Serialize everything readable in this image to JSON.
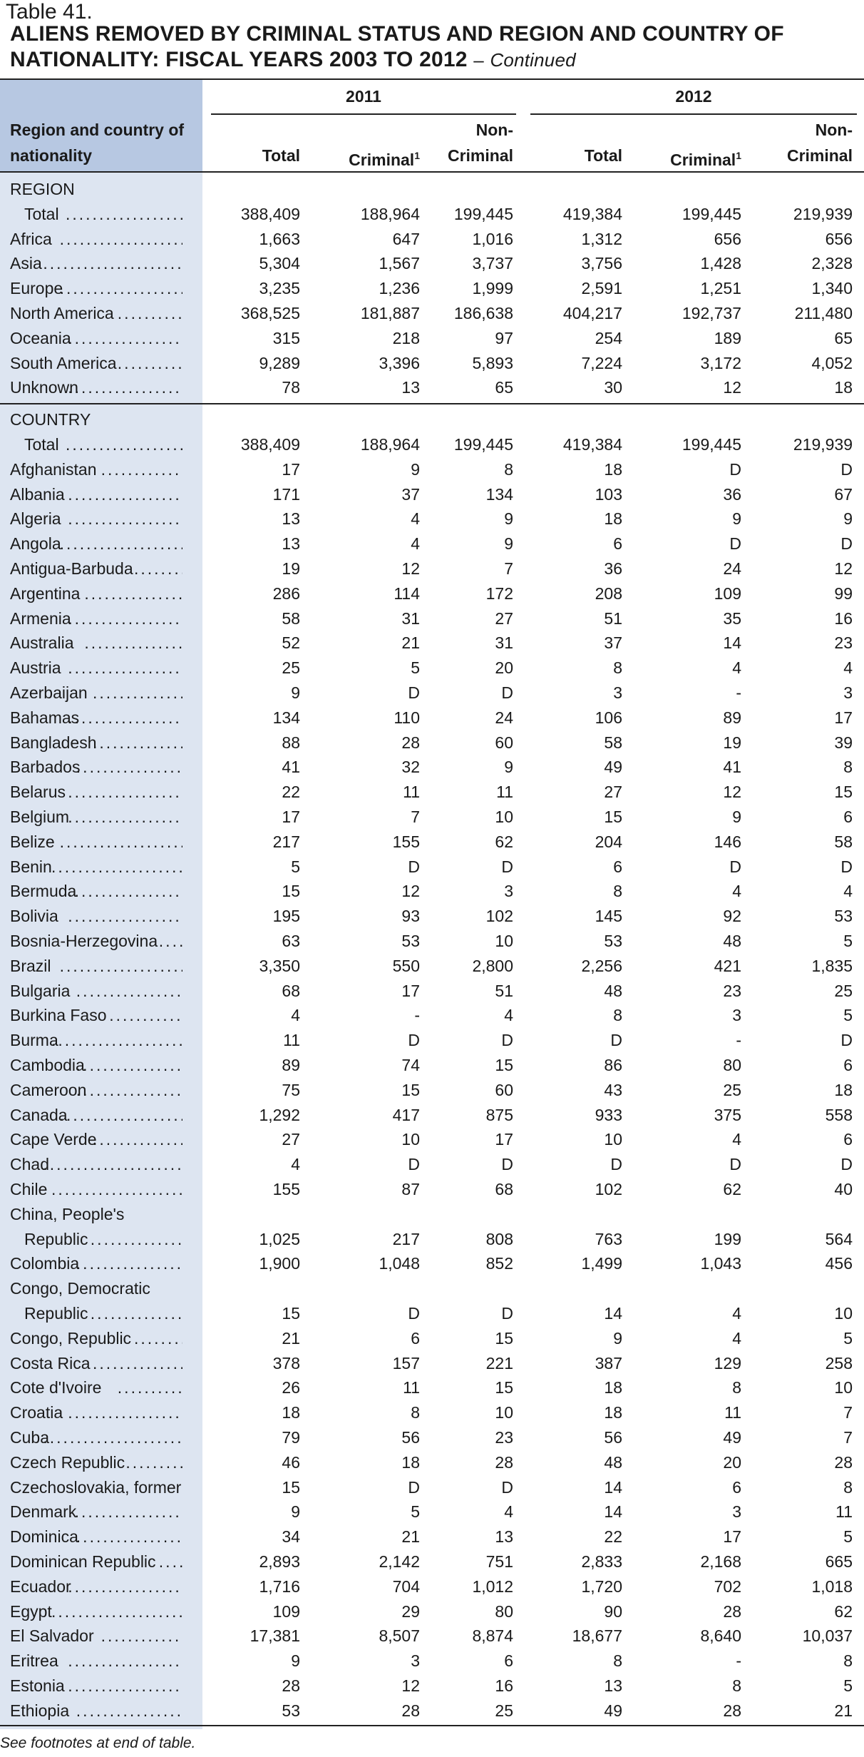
{
  "table_number": "Table 41.",
  "title": "ALIENS REMOVED BY CRIMINAL STATUS AND REGION AND COUNTRY OF NATIONALITY: FISCAL YEARS 2003 TO 2012",
  "title_dash": "–",
  "title_continued": "Continued",
  "header": {
    "row_head": "Region and country of nationality",
    "year_2011": "2011",
    "year_2012": "2012",
    "total": "Total",
    "criminal": "Criminal",
    "criminal_sup": "1",
    "non_line1": "Non-",
    "non_line2": "Criminal"
  },
  "region_section": "REGION",
  "region_rows": [
    [
      "Total",
      "388,409",
      "188,964",
      "199,445",
      "419,384",
      "199,445",
      "219,939"
    ],
    [
      "Africa",
      "1,663",
      "647",
      "1,016",
      "1,312",
      "656",
      "656"
    ],
    [
      "Asia",
      "5,304",
      "1,567",
      "3,737",
      "3,756",
      "1,428",
      "2,328"
    ],
    [
      "Europe",
      "3,235",
      "1,236",
      "1,999",
      "2,591",
      "1,251",
      "1,340"
    ],
    [
      "North America",
      "368,525",
      "181,887",
      "186,638",
      "404,217",
      "192,737",
      "211,480"
    ],
    [
      "Oceania",
      "315",
      "218",
      "97",
      "254",
      "189",
      "65"
    ],
    [
      "South America",
      "9,289",
      "3,396",
      "5,893",
      "7,224",
      "3,172",
      "4,052"
    ],
    [
      "Unknown",
      "78",
      "13",
      "65",
      "30",
      "12",
      "18"
    ]
  ],
  "country_section": "COUNTRY",
  "country_rows": [
    [
      "Total",
      "388,409",
      "188,964",
      "199,445",
      "419,384",
      "199,445",
      "219,939"
    ],
    [
      "Afghanistan",
      "17",
      "9",
      "8",
      "18",
      "D",
      "D"
    ],
    [
      "Albania",
      "171",
      "37",
      "134",
      "103",
      "36",
      "67"
    ],
    [
      "Algeria",
      "13",
      "4",
      "9",
      "18",
      "9",
      "9"
    ],
    [
      "Angola",
      "13",
      "4",
      "9",
      "6",
      "D",
      "D"
    ],
    [
      "Antigua-Barbuda",
      "19",
      "12",
      "7",
      "36",
      "24",
      "12"
    ],
    [
      "Argentina",
      "286",
      "114",
      "172",
      "208",
      "109",
      "99"
    ],
    [
      "Armenia",
      "58",
      "31",
      "27",
      "51",
      "35",
      "16"
    ],
    [
      "Australia",
      "52",
      "21",
      "31",
      "37",
      "14",
      "23"
    ],
    [
      "Austria",
      "25",
      "5",
      "20",
      "8",
      "4",
      "4"
    ],
    [
      "Azerbaijan",
      "9",
      "D",
      "D",
      "3",
      "-",
      "3"
    ],
    [
      "Bahamas",
      "134",
      "110",
      "24",
      "106",
      "89",
      "17"
    ],
    [
      "Bangladesh",
      "88",
      "28",
      "60",
      "58",
      "19",
      "39"
    ],
    [
      "Barbados",
      "41",
      "32",
      "9",
      "49",
      "41",
      "8"
    ],
    [
      "Belarus",
      "22",
      "11",
      "11",
      "27",
      "12",
      "15"
    ],
    [
      "Belgium",
      "17",
      "7",
      "10",
      "15",
      "9",
      "6"
    ],
    [
      "Belize",
      "217",
      "155",
      "62",
      "204",
      "146",
      "58"
    ],
    [
      "Benin",
      "5",
      "D",
      "D",
      "6",
      "D",
      "D"
    ],
    [
      "Bermuda",
      "15",
      "12",
      "3",
      "8",
      "4",
      "4"
    ],
    [
      "Bolivia",
      "195",
      "93",
      "102",
      "145",
      "92",
      "53"
    ],
    [
      "Bosnia-Herzegovina",
      "63",
      "53",
      "10",
      "53",
      "48",
      "5"
    ],
    [
      "Brazil",
      "3,350",
      "550",
      "2,800",
      "2,256",
      "421",
      "1,835"
    ],
    [
      "Bulgaria",
      "68",
      "17",
      "51",
      "48",
      "23",
      "25"
    ],
    [
      "Burkina Faso",
      "4",
      "-",
      "4",
      "8",
      "3",
      "5"
    ],
    [
      "Burma",
      "11",
      "D",
      "D",
      "D",
      "-",
      "D"
    ],
    [
      "Cambodia",
      "89",
      "74",
      "15",
      "86",
      "80",
      "6"
    ],
    [
      "Cameroon",
      "75",
      "15",
      "60",
      "43",
      "25",
      "18"
    ],
    [
      "Canada",
      "1,292",
      "417",
      "875",
      "933",
      "375",
      "558"
    ],
    [
      "Cape Verde",
      "27",
      "10",
      "17",
      "10",
      "4",
      "6"
    ],
    [
      "Chad",
      "4",
      "D",
      "D",
      "D",
      "D",
      "D"
    ],
    [
      "Chile",
      "155",
      "87",
      "68",
      "102",
      "62",
      "40"
    ],
    [
      "China, People's",
      "",
      "",
      "",
      "",
      "",
      ""
    ],
    [
      "Republic",
      "1,025",
      "217",
      "808",
      "763",
      "199",
      "564"
    ],
    [
      "Colombia",
      "1,900",
      "1,048",
      "852",
      "1,499",
      "1,043",
      "456"
    ],
    [
      "Congo, Democratic",
      "",
      "",
      "",
      "",
      "",
      ""
    ],
    [
      "Republic",
      "15",
      "D",
      "D",
      "14",
      "4",
      "10"
    ],
    [
      "Congo, Republic",
      "21",
      "6",
      "15",
      "9",
      "4",
      "5"
    ],
    [
      "Costa Rica",
      "378",
      "157",
      "221",
      "387",
      "129",
      "258"
    ],
    [
      "Cote d'Ivoire",
      "26",
      "11",
      "15",
      "18",
      "8",
      "10"
    ],
    [
      "Croatia",
      "18",
      "8",
      "10",
      "18",
      "11",
      "7"
    ],
    [
      "Cuba",
      "79",
      "56",
      "23",
      "56",
      "49",
      "7"
    ],
    [
      "Czech Republic",
      "46",
      "18",
      "28",
      "48",
      "20",
      "28"
    ],
    [
      "Czechoslovakia, former",
      "15",
      "D",
      "D",
      "14",
      "6",
      "8"
    ],
    [
      "Denmark",
      "9",
      "5",
      "4",
      "14",
      "3",
      "11"
    ],
    [
      "Dominica",
      "34",
      "21",
      "13",
      "22",
      "17",
      "5"
    ],
    [
      "Dominican Republic",
      "2,893",
      "2,142",
      "751",
      "2,833",
      "2,168",
      "665"
    ],
    [
      "Ecuador",
      "1,716",
      "704",
      "1,012",
      "1,720",
      "702",
      "1,018"
    ],
    [
      "Egypt",
      "109",
      "29",
      "80",
      "90",
      "28",
      "62"
    ],
    [
      "El Salvador",
      "17,381",
      "8,507",
      "8,874",
      "18,677",
      "8,640",
      "10,037"
    ],
    [
      "Eritrea",
      "9",
      "3",
      "6",
      "8",
      "-",
      "8"
    ],
    [
      "Estonia",
      "28",
      "12",
      "16",
      "13",
      "8",
      "5"
    ],
    [
      "Ethiopia",
      "53",
      "28",
      "25",
      "49",
      "28",
      "21"
    ]
  ],
  "footnote": "See footnotes at end of table."
}
